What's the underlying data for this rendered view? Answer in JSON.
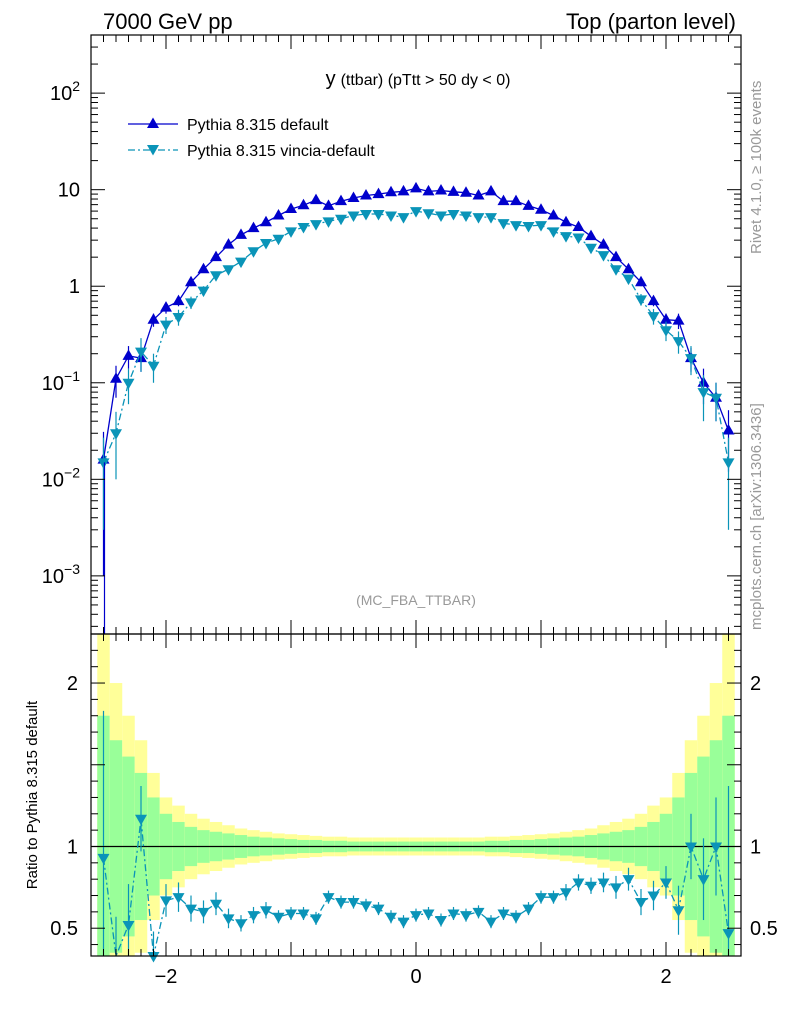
{
  "header": {
    "left": "7000 GeV pp",
    "right": "Top (parton level)"
  },
  "side_labels": {
    "rivet": "Rivet 4.1.0, ≥ 100k events",
    "mcplots": "mcplots.cern.ch [arXiv:1306.3436]"
  },
  "chart_data": {
    "type": "line",
    "title_main": "y",
    "title_rest": "(ttbar) (pTtt > 50 dy < 0)",
    "watermark": "(MC_FBA_TTBAR)",
    "ylabel_ratio": "Ratio to Pythia 8.315 default",
    "xlim": [
      -2.6,
      2.6
    ],
    "ylim_main": [
      0.00025,
      400
    ],
    "ylim_ratio": [
      0.33,
      2.3
    ],
    "x_ticks": [
      {
        "v": -2,
        "label": "−2"
      },
      {
        "v": 0,
        "label": "0"
      },
      {
        "v": 2,
        "label": "2"
      }
    ],
    "y_ticks_main": [
      {
        "v": 100,
        "base": "10",
        "exp": "2"
      },
      {
        "v": 10,
        "base": "10",
        "exp": ""
      },
      {
        "v": 1,
        "base": "1",
        "exp": ""
      },
      {
        "v": 0.1,
        "base": "10",
        "exp": "−1"
      },
      {
        "v": 0.01,
        "base": "10",
        "exp": "−2"
      },
      {
        "v": 0.001,
        "base": "10",
        "exp": "−3"
      }
    ],
    "y_ticks_ratio": [
      {
        "v": 2,
        "label": "2"
      },
      {
        "v": 1,
        "label": "1"
      },
      {
        "v": 0.5,
        "label": "0.5"
      }
    ],
    "bin_width": 0.1,
    "x": [
      -2.5,
      -2.4,
      -2.3,
      -2.2,
      -2.1,
      -2.0,
      -1.9,
      -1.8,
      -1.7,
      -1.6,
      -1.5,
      -1.4,
      -1.3,
      -1.2,
      -1.1,
      -1.0,
      -0.9,
      -0.8,
      -0.7,
      -0.6,
      -0.5,
      -0.4,
      -0.3,
      -0.2,
      -0.1,
      0.0,
      0.1,
      0.2,
      0.3,
      0.4,
      0.5,
      0.6,
      0.7,
      0.8,
      0.9,
      1.0,
      1.1,
      1.2,
      1.3,
      1.4,
      1.5,
      1.6,
      1.7,
      1.8,
      1.9,
      2.0,
      2.1,
      2.2,
      2.3,
      2.4,
      2.5
    ],
    "band_inner": [
      0.8,
      0.65,
      0.55,
      0.45,
      0.3,
      0.2,
      0.15,
      0.12,
      0.1,
      0.09,
      0.08,
      0.07,
      0.06,
      0.055,
      0.05,
      0.045,
      0.04,
      0.04,
      0.035,
      0.035,
      0.03,
      0.03,
      0.03,
      0.03,
      0.03,
      0.03,
      0.03,
      0.03,
      0.03,
      0.03,
      0.03,
      0.035,
      0.035,
      0.04,
      0.04,
      0.045,
      0.05,
      0.055,
      0.06,
      0.07,
      0.08,
      0.09,
      0.1,
      0.12,
      0.15,
      0.2,
      0.3,
      0.45,
      0.55,
      0.65,
      0.8
    ],
    "band_outer": [
      1.3,
      1.0,
      0.8,
      0.65,
      0.45,
      0.3,
      0.25,
      0.2,
      0.17,
      0.15,
      0.13,
      0.11,
      0.1,
      0.09,
      0.08,
      0.075,
      0.07,
      0.065,
      0.06,
      0.06,
      0.055,
      0.055,
      0.055,
      0.055,
      0.055,
      0.055,
      0.055,
      0.055,
      0.055,
      0.055,
      0.055,
      0.06,
      0.06,
      0.065,
      0.07,
      0.075,
      0.08,
      0.09,
      0.1,
      0.11,
      0.13,
      0.15,
      0.17,
      0.2,
      0.25,
      0.3,
      0.45,
      0.65,
      0.8,
      1.0,
      1.3
    ],
    "series": [
      {
        "name": "Pythia 8.315 default",
        "color": "#0000cc",
        "marker": "triangle-up",
        "dash": "",
        "values": [
          0.016,
          0.11,
          0.19,
          0.18,
          0.45,
          0.6,
          0.7,
          1.1,
          1.5,
          2.0,
          2.7,
          3.4,
          4.0,
          4.6,
          5.4,
          6.3,
          6.9,
          7.8,
          6.8,
          7.6,
          8.2,
          8.7,
          9.0,
          9.4,
          9.6,
          10.3,
          9.6,
          9.8,
          9.5,
          9.3,
          8.7,
          9.6,
          7.6,
          7.6,
          6.8,
          6.2,
          5.4,
          4.6,
          4.1,
          3.3,
          2.7,
          2.0,
          1.5,
          1.1,
          0.7,
          0.45,
          0.44,
          0.18,
          0.1,
          0.07,
          0.032
        ],
        "errors": [
          0.015,
          0.04,
          0.05,
          0.05,
          0.07,
          0.08,
          0.08,
          0.1,
          0.1,
          0.12,
          0.14,
          0.15,
          0.16,
          0.17,
          0.19,
          0.2,
          0.21,
          0.22,
          0.21,
          0.22,
          0.23,
          0.24,
          0.24,
          0.25,
          0.25,
          0.26,
          0.25,
          0.25,
          0.25,
          0.24,
          0.24,
          0.25,
          0.22,
          0.22,
          0.21,
          0.2,
          0.19,
          0.17,
          0.16,
          0.15,
          0.14,
          0.12,
          0.1,
          0.1,
          0.08,
          0.07,
          0.08,
          0.05,
          0.04,
          0.03,
          0.02
        ]
      },
      {
        "name": "Pythia 8.315 vincia-default",
        "color": "#0a94b8",
        "marker": "triangle-down",
        "dash": "7,3,2,3",
        "values": [
          0.015,
          0.03,
          0.1,
          0.21,
          0.15,
          0.4,
          0.48,
          0.68,
          0.9,
          1.3,
          1.5,
          1.8,
          2.3,
          2.8,
          3.1,
          3.7,
          4.1,
          4.4,
          4.7,
          5.0,
          5.4,
          5.6,
          5.6,
          5.4,
          5.2,
          6.0,
          5.7,
          5.4,
          5.6,
          5.4,
          5.2,
          5.2,
          4.5,
          4.3,
          4.2,
          4.3,
          3.7,
          3.3,
          3.2,
          2.5,
          2.1,
          1.5,
          1.2,
          0.73,
          0.49,
          0.35,
          0.27,
          0.18,
          0.08,
          0.07,
          0.015
        ],
        "errors": [
          0.012,
          0.02,
          0.04,
          0.08,
          0.05,
          0.08,
          0.09,
          0.1,
          0.1,
          0.12,
          0.13,
          0.14,
          0.15,
          0.16,
          0.17,
          0.18,
          0.19,
          0.2,
          0.2,
          0.21,
          0.21,
          0.22,
          0.22,
          0.22,
          0.22,
          0.23,
          0.22,
          0.22,
          0.22,
          0.22,
          0.21,
          0.21,
          0.2,
          0.2,
          0.19,
          0.19,
          0.18,
          0.17,
          0.16,
          0.15,
          0.14,
          0.12,
          0.11,
          0.1,
          0.09,
          0.08,
          0.07,
          0.06,
          0.04,
          0.03,
          0.012
        ]
      }
    ],
    "ratio": {
      "values": [
        0.93,
        0.27,
        0.52,
        1.17,
        0.33,
        0.67,
        0.69,
        0.62,
        0.6,
        0.65,
        0.56,
        0.53,
        0.58,
        0.61,
        0.57,
        0.59,
        0.59,
        0.56,
        0.69,
        0.66,
        0.66,
        0.64,
        0.62,
        0.57,
        0.54,
        0.58,
        0.59,
        0.55,
        0.59,
        0.58,
        0.6,
        0.54,
        0.59,
        0.57,
        0.62,
        0.69,
        0.69,
        0.72,
        0.78,
        0.76,
        0.78,
        0.75,
        0.8,
        0.66,
        0.7,
        0.78,
        0.61,
        1.0,
        0.8,
        1.0,
        0.47
      ],
      "errors": [
        0.9,
        0.3,
        0.25,
        0.2,
        0.15,
        0.1,
        0.09,
        0.08,
        0.07,
        0.07,
        0.06,
        0.05,
        0.05,
        0.05,
        0.04,
        0.04,
        0.04,
        0.04,
        0.04,
        0.04,
        0.04,
        0.04,
        0.04,
        0.04,
        0.04,
        0.04,
        0.04,
        0.04,
        0.04,
        0.04,
        0.04,
        0.04,
        0.04,
        0.04,
        0.04,
        0.04,
        0.04,
        0.05,
        0.05,
        0.05,
        0.06,
        0.07,
        0.07,
        0.08,
        0.09,
        0.1,
        0.15,
        0.2,
        0.25,
        0.3,
        0.9
      ]
    }
  }
}
